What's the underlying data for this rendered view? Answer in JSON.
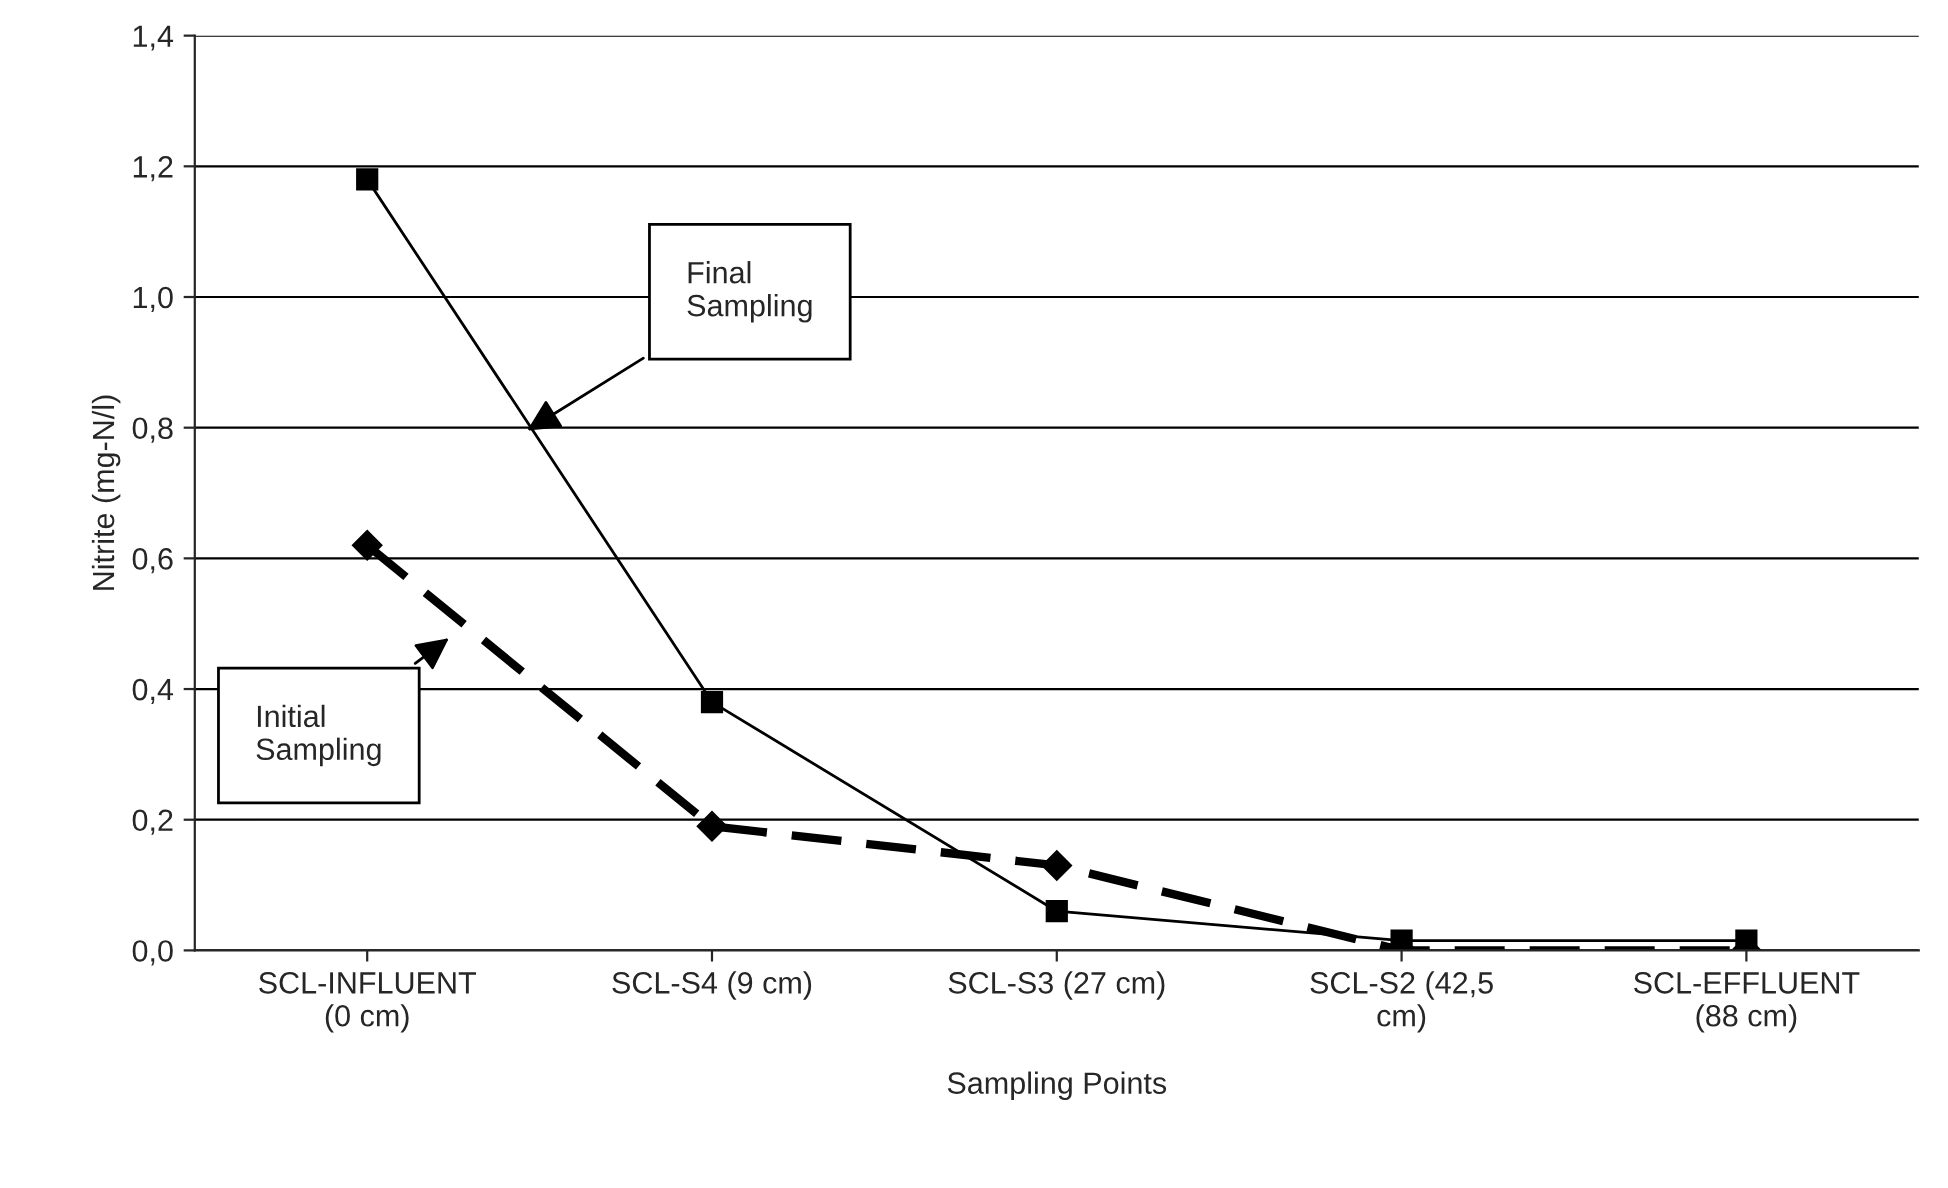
{
  "chart_data": {
    "type": "line",
    "xlabel": "Sampling Points",
    "ylabel": "Nitrite (mg-N/l)",
    "categories": [
      "SCL-INFLUENT\n(0 cm)",
      "SCL-S4 (9 cm)",
      "SCL-S3 (27 cm)",
      "SCL-S2 (42,5\ncm)",
      "SCL-EFFLUENT\n(88 cm)"
    ],
    "series": [
      {
        "color": "#000000",
        "values": [
          1.18,
          0.38,
          0.06,
          0.015,
          0.015
        ],
        "marker": "square",
        "line_style": "solid"
      },
      {
        "color": "#000000",
        "values": [
          0.62,
          0.19,
          0.13,
          0.0,
          0.0
        ],
        "marker": "diamond",
        "line_style": "dashed"
      }
    ],
    "ylim": [
      0,
      1.4
    ],
    "yticks": [
      {
        "value": 0,
        "label": "0,0"
      },
      {
        "value": 0.2,
        "label": "0,2"
      },
      {
        "value": 0.4,
        "label": "0,4"
      },
      {
        "value": 0.6,
        "label": "0,6"
      },
      {
        "value": 0.8,
        "label": "0,8"
      },
      {
        "value": 1.0,
        "label": "1,0"
      },
      {
        "value": 1.2,
        "label": "1,2"
      },
      {
        "value": 1.4,
        "label": "1,4"
      }
    ],
    "grid": "y",
    "legend": false,
    "annotations": [
      "Final\nSampling",
      "Initial\nSampling"
    ]
  }
}
